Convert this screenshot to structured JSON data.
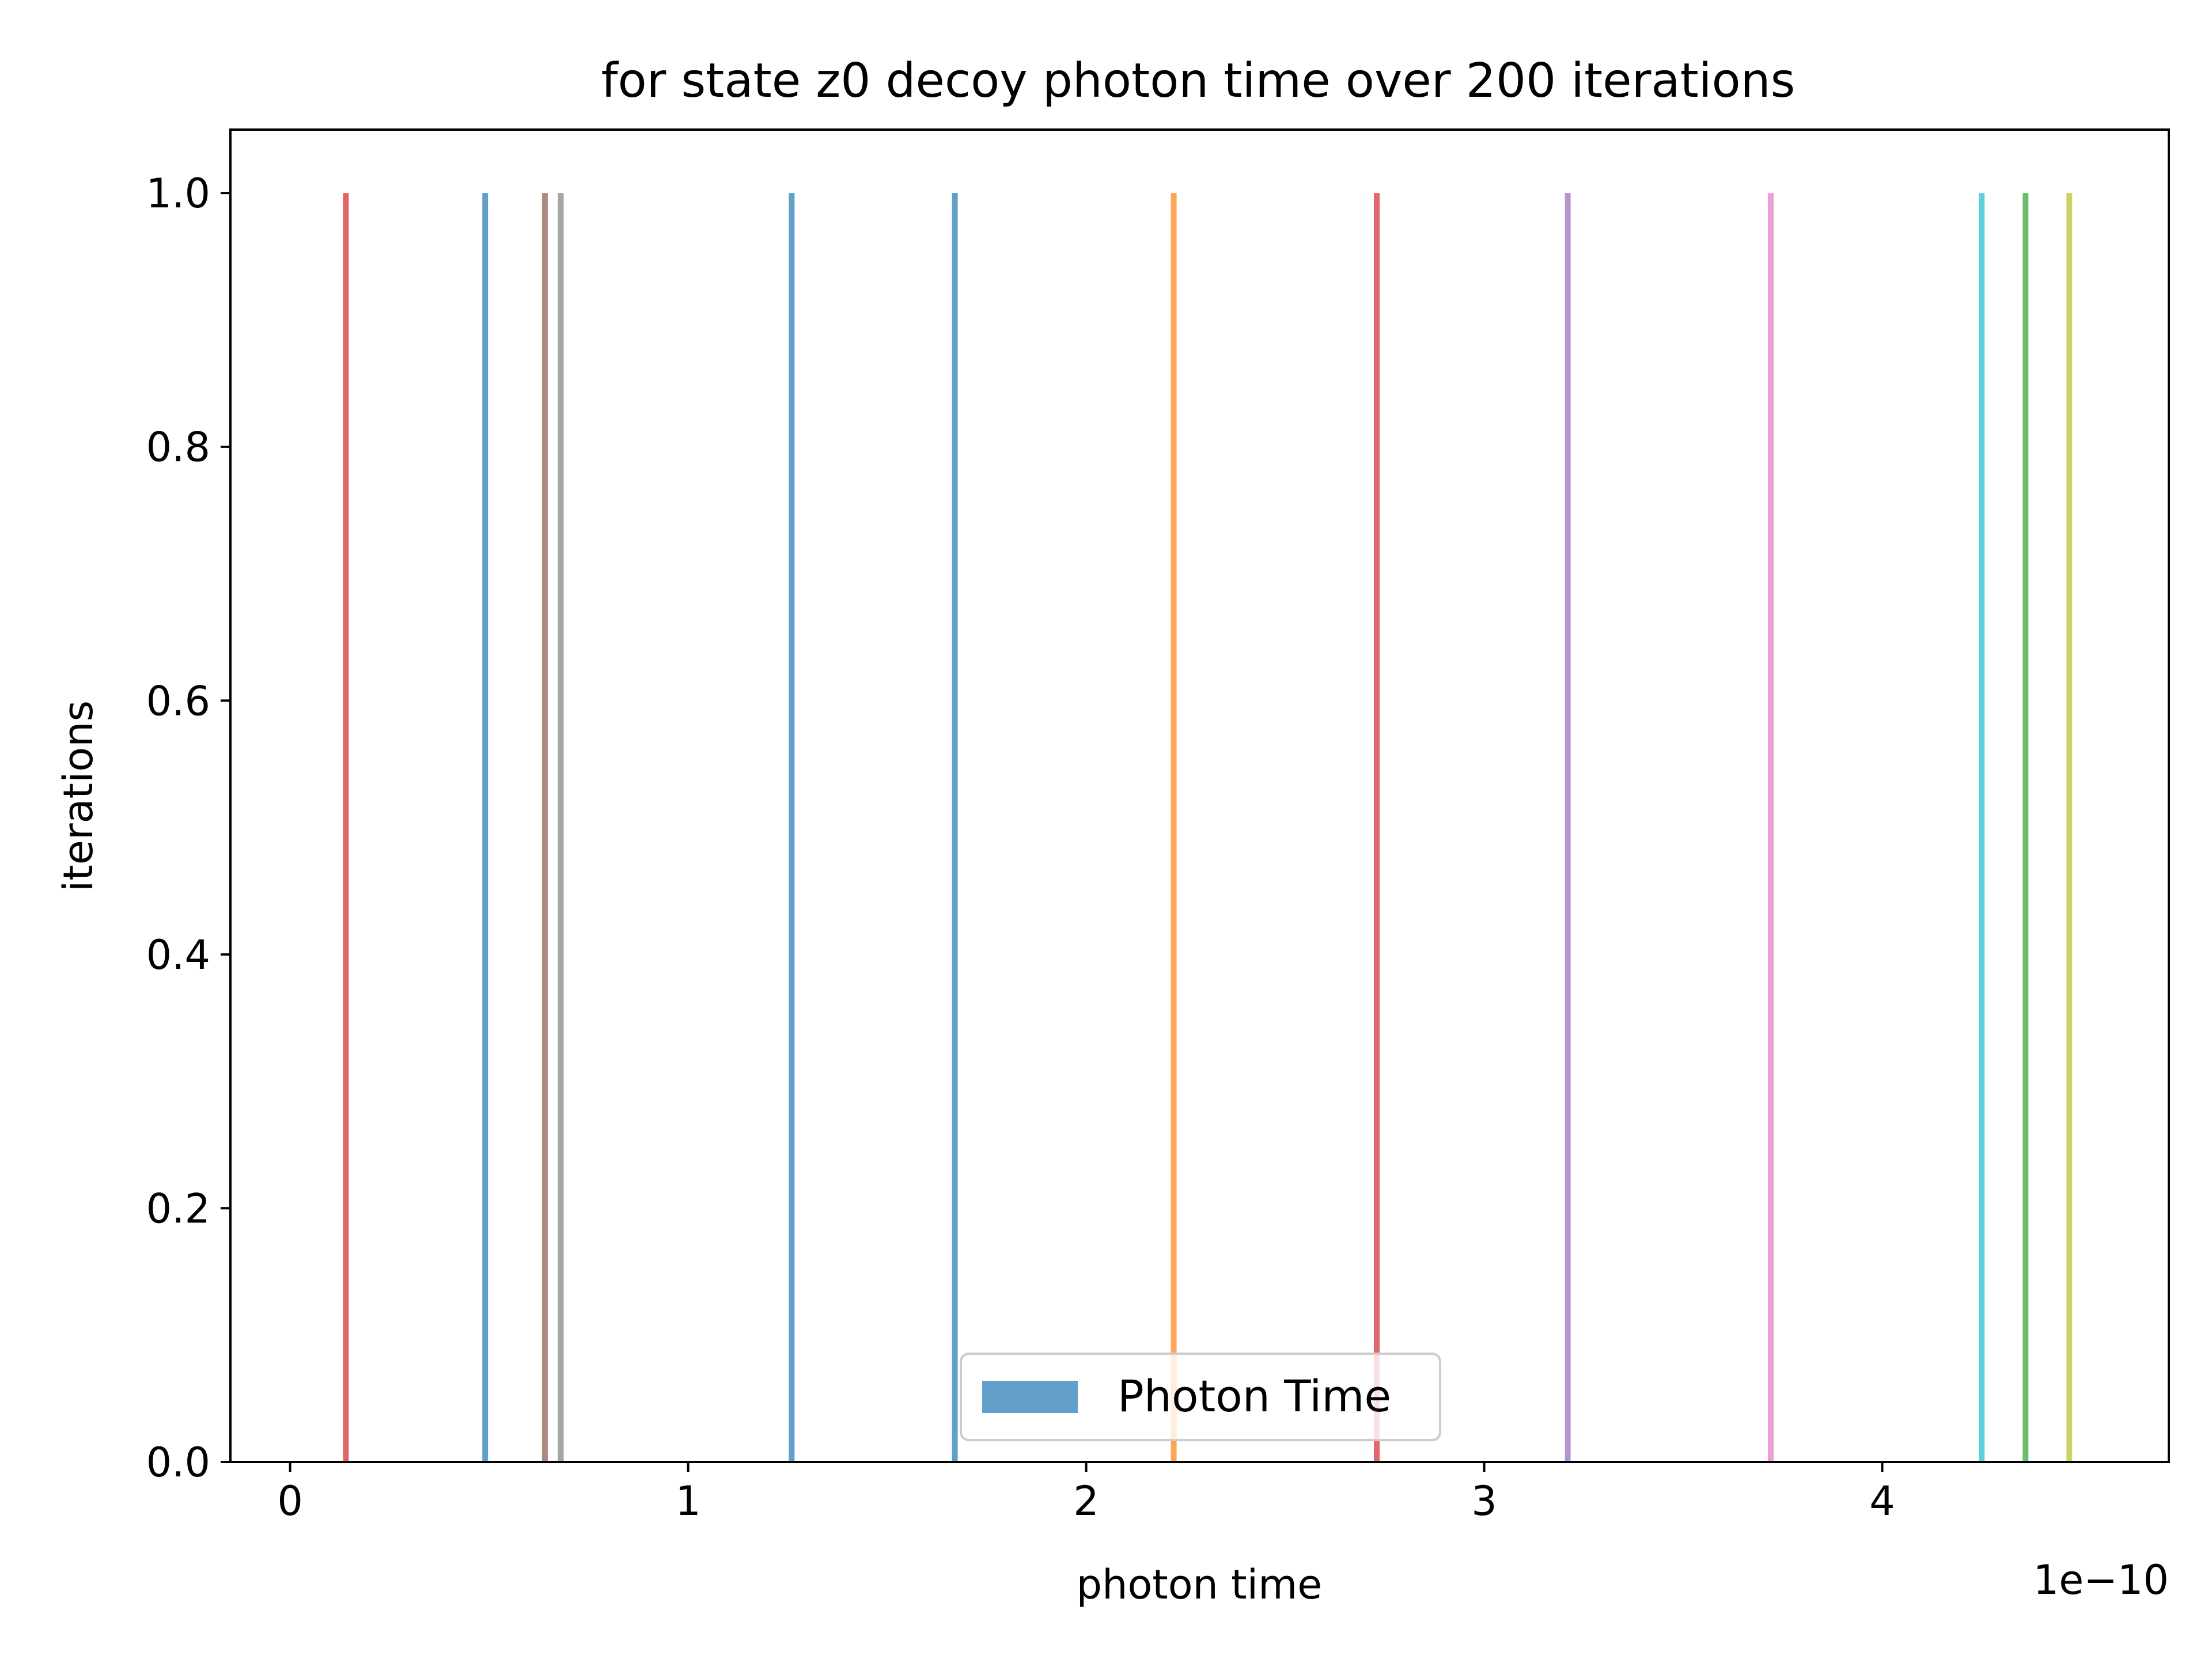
{
  "chart_data": {
    "type": "bar",
    "title": "for state z0 decoy photon time over 200 iterations",
    "xlabel": "photon time",
    "ylabel": "iterations",
    "x_offset_text": "1e−10",
    "x_scale": 1e-10,
    "xlim": [
      -0.15,
      4.72
    ],
    "ylim": [
      0,
      1.05
    ],
    "x_ticks": [
      0,
      1,
      2,
      3,
      4
    ],
    "x_tick_labels": [
      "0",
      "1",
      "2",
      "3",
      "4"
    ],
    "y_ticks": [
      0.0,
      0.2,
      0.4,
      0.6,
      0.8,
      1.0
    ],
    "y_tick_labels": [
      "0.0",
      "0.2",
      "0.4",
      "0.6",
      "0.8",
      "1.0"
    ],
    "grid": false,
    "legend": {
      "position": "bottom-center",
      "entries": [
        "Photon Time"
      ],
      "color": "#1f77b4"
    },
    "bars": [
      {
        "x": 0.14,
        "y": 1.0,
        "color": "#d62728"
      },
      {
        "x": 0.49,
        "y": 1.0,
        "color": "#1f77b4"
      },
      {
        "x": 0.64,
        "y": 1.0,
        "color": "#8c564b"
      },
      {
        "x": 0.68,
        "y": 1.0,
        "color": "#7f7f7f"
      },
      {
        "x": 1.26,
        "y": 1.0,
        "color": "#1f77b4"
      },
      {
        "x": 1.67,
        "y": 1.0,
        "color": "#1f77b4"
      },
      {
        "x": 2.22,
        "y": 1.0,
        "color": "#ff7f0e"
      },
      {
        "x": 2.73,
        "y": 1.0,
        "color": "#d62728"
      },
      {
        "x": 3.21,
        "y": 1.0,
        "color": "#9467bd"
      },
      {
        "x": 3.72,
        "y": 1.0,
        "color": "#e377c2"
      },
      {
        "x": 4.25,
        "y": 1.0,
        "color": "#17becf"
      },
      {
        "x": 4.36,
        "y": 1.0,
        "color": "#2ca02c"
      },
      {
        "x": 4.47,
        "y": 1.0,
        "color": "#bcbd22"
      }
    ]
  }
}
